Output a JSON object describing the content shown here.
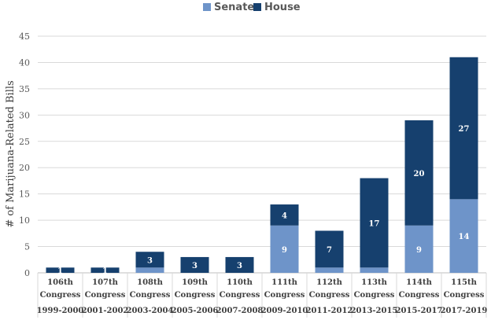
{
  "chart_data": {
    "type": "bar",
    "stacked": true,
    "categories": [
      [
        "106th",
        "Congress",
        "1999-2000"
      ],
      [
        "107th",
        "Congress",
        "2001-2002"
      ],
      [
        "108th",
        "Congress",
        "2003-2004"
      ],
      [
        "109th",
        "Congress",
        "2005-2006"
      ],
      [
        "110th",
        "Congress",
        "2007-2008"
      ],
      [
        "111th",
        "Congress",
        "2009-2010"
      ],
      [
        "112th",
        "Congress",
        "2011-2012"
      ],
      [
        "113th",
        "Congress",
        "2013-2015"
      ],
      [
        "114th",
        "Congress",
        "2015-2017"
      ],
      [
        "115th",
        "Congress",
        "2017-2019"
      ]
    ],
    "series": [
      {
        "name": "Senate",
        "color": "#6e94c9",
        "values": [
          0,
          0,
          1,
          0,
          0,
          9,
          1,
          1,
          9,
          14
        ],
        "labels": [
          "",
          "",
          "",
          "",
          "",
          "9",
          "",
          "",
          "9",
          "14"
        ]
      },
      {
        "name": "House",
        "color": "#16406e",
        "values": [
          1,
          1,
          3,
          3,
          3,
          4,
          7,
          17,
          20,
          27
        ],
        "labels": [
          "1",
          "1",
          "3",
          "3",
          "3",
          "4",
          "7",
          "17",
          "20",
          "27"
        ]
      }
    ],
    "ylabel": "# of Marijuana-Related Bills",
    "ylim": [
      0,
      45
    ],
    "yticks": [
      0,
      5,
      10,
      15,
      20,
      25,
      30,
      35,
      40,
      45
    ],
    "grid": true,
    "legend": "top-center"
  }
}
